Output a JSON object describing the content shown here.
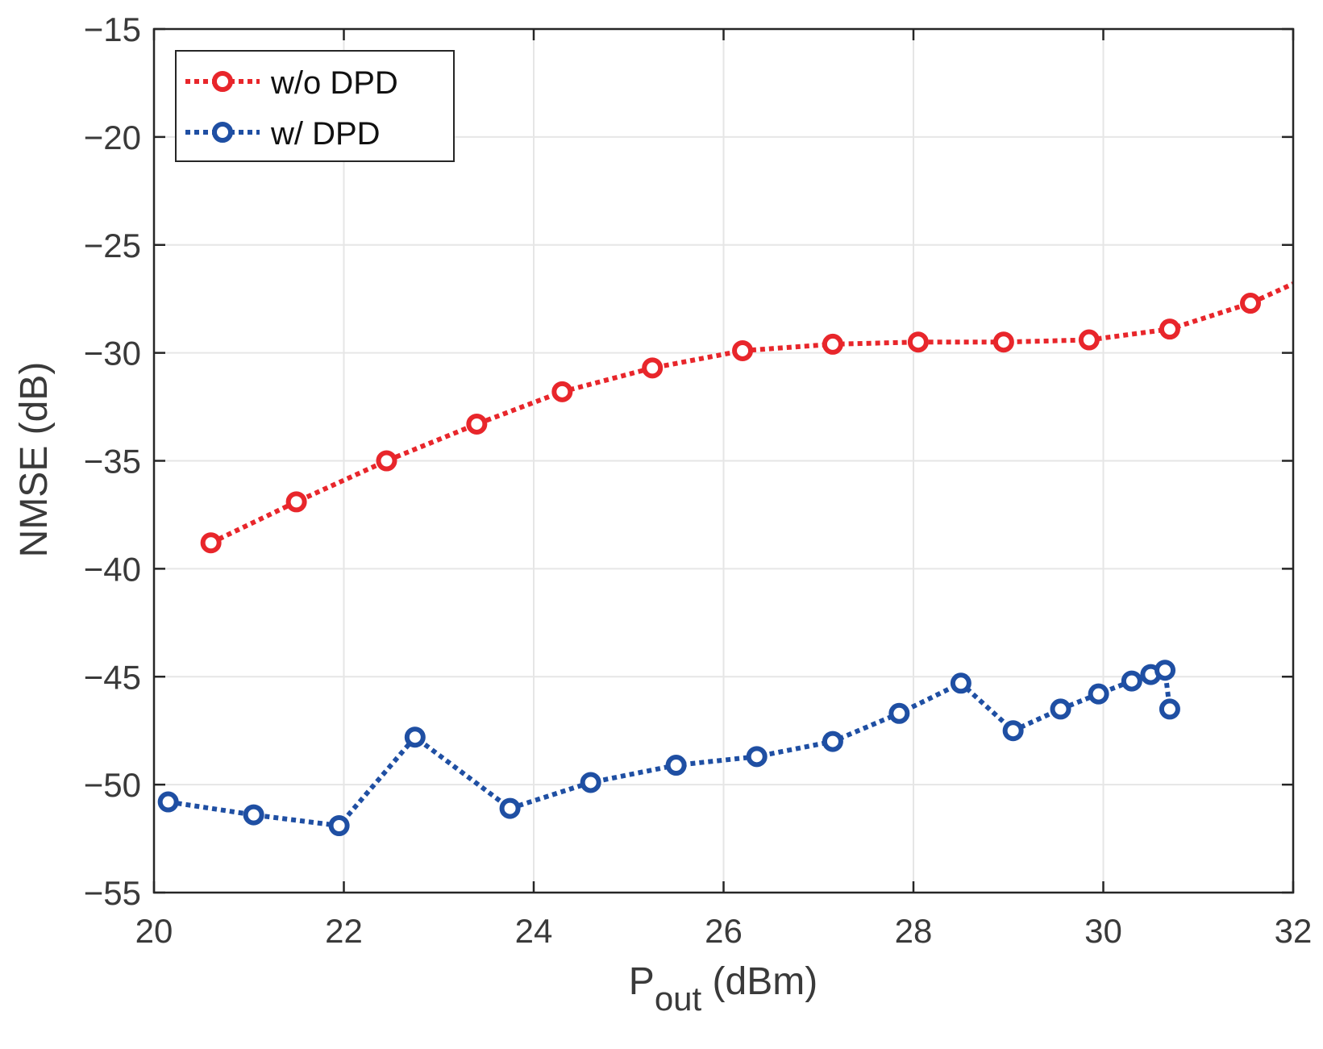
{
  "chart_data": {
    "type": "line",
    "title": "",
    "xlabel_main": "P",
    "xlabel_sub": "out",
    "xlabel_unit": " (dBm)",
    "ylabel": "NMSE (dB)",
    "xlim": [
      20,
      32
    ],
    "ylim": [
      -55,
      -15
    ],
    "grid": true,
    "legend_position": "top-left",
    "xticks": [
      20,
      22,
      24,
      26,
      28,
      30,
      32
    ],
    "yticks": [
      -15,
      -20,
      -25,
      -30,
      -35,
      -40,
      -45,
      -50,
      -55
    ],
    "xtick_labels": [
      "20",
      "22",
      "24",
      "26",
      "28",
      "30",
      "32"
    ],
    "ytick_labels": [
      "−15",
      "−20",
      "−25",
      "−30",
      "−35",
      "−40",
      "−45",
      "−50",
      "−55"
    ],
    "series": [
      {
        "name": "w/o DPD",
        "color": "#e8262b",
        "line_style": "dotted",
        "marker": "circle",
        "x": [
          20.6,
          21.5,
          22.45,
          23.4,
          24.3,
          25.25,
          26.2,
          27.15,
          28.05,
          28.95,
          29.85,
          30.7,
          31.55,
          32.0
        ],
        "y": [
          -38.8,
          -36.9,
          -35.0,
          -33.3,
          -31.8,
          -30.7,
          -29.9,
          -29.6,
          -29.5,
          -29.5,
          -29.4,
          -28.9,
          -27.7,
          -26.8
        ],
        "markers_shown": 13
      },
      {
        "name": "w/ DPD",
        "color": "#1f4fa3",
        "line_style": "dotted",
        "marker": "circle",
        "x": [
          20.15,
          21.05,
          21.95,
          22.75,
          23.75,
          24.6,
          25.5,
          26.35,
          27.15,
          27.85,
          28.5,
          29.05,
          29.55,
          29.95,
          30.3,
          30.5,
          30.65,
          30.7
        ],
        "y": [
          -50.8,
          -51.4,
          -51.9,
          -47.8,
          -51.1,
          -49.9,
          -49.1,
          -48.7,
          -48.0,
          -46.7,
          -45.3,
          -47.5,
          -46.5,
          -45.8,
          -45.2,
          -44.9,
          -44.7,
          -46.5
        ],
        "markers_shown": 18
      }
    ]
  }
}
